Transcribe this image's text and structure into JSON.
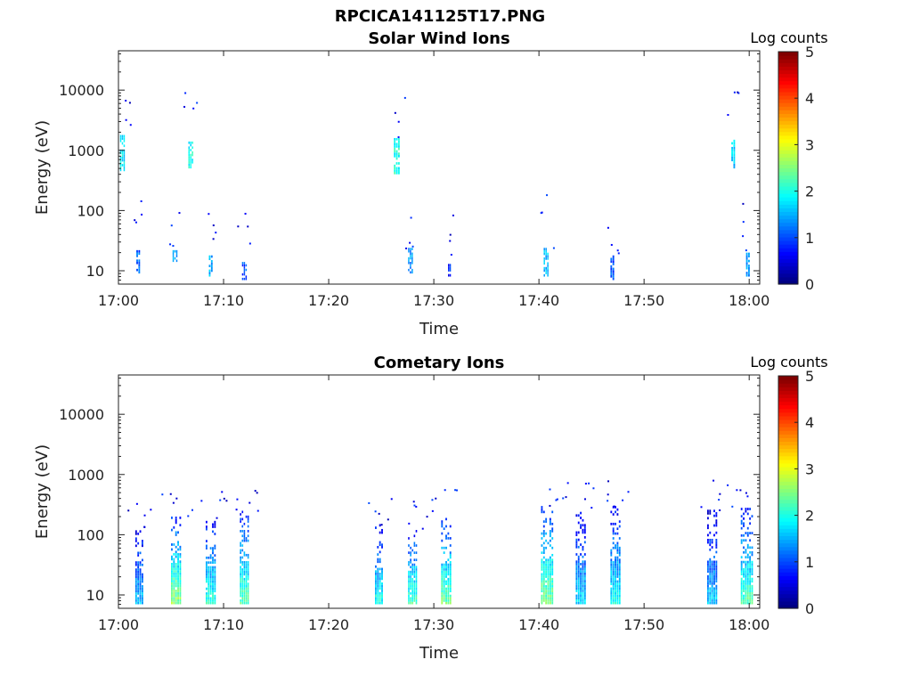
{
  "figure": {
    "title": "RPCICA141125T17.PNG"
  },
  "chart_data": [
    {
      "type": "heatmap",
      "title": "Solar Wind Ions",
      "xlabel": "Time",
      "ylabel": "Energy (eV)",
      "yscale": "log",
      "ylim": [
        6,
        45000
      ],
      "xlim_minutes": [
        0,
        61
      ],
      "x_ticks": [
        "17:00",
        "17:10",
        "17:20",
        "17:30",
        "17:40",
        "17:50",
        "18:00"
      ],
      "y_ticks": [
        "10",
        "100",
        "1000",
        "10000"
      ],
      "colorbar": {
        "label": "Log counts",
        "min": 0,
        "max": 5,
        "ticks": [
          "0",
          "1",
          "2",
          "3",
          "4",
          "5"
        ]
      },
      "bursts": [
        {
          "t": 0.4,
          "dt": 0.5,
          "e_lo": 450,
          "e_hi": 1800,
          "level": 1.8
        },
        {
          "t": 1.9,
          "dt": 0.4,
          "e_lo": 9,
          "e_hi": 22,
          "level": 1.1
        },
        {
          "t": 5.4,
          "dt": 0.5,
          "e_lo": 14,
          "e_hi": 22,
          "level": 1.5
        },
        {
          "t": 6.9,
          "dt": 0.5,
          "e_lo": 500,
          "e_hi": 1400,
          "level": 1.9
        },
        {
          "t": 8.8,
          "dt": 0.4,
          "e_lo": 8,
          "e_hi": 18,
          "level": 1.5
        },
        {
          "t": 12.0,
          "dt": 0.5,
          "e_lo": 7,
          "e_hi": 14,
          "level": 1.0
        },
        {
          "t": 26.5,
          "dt": 0.6,
          "e_lo": 400,
          "e_hi": 1600,
          "level": 2.0
        },
        {
          "t": 27.8,
          "dt": 0.5,
          "e_lo": 9,
          "e_hi": 24,
          "level": 1.3
        },
        {
          "t": 31.5,
          "dt": 0.3,
          "e_lo": 8,
          "e_hi": 13,
          "level": 0.8
        },
        {
          "t": 40.7,
          "dt": 0.5,
          "e_lo": 8,
          "e_hi": 24,
          "level": 1.5
        },
        {
          "t": 47.0,
          "dt": 0.4,
          "e_lo": 7,
          "e_hi": 18,
          "level": 1.0
        },
        {
          "t": 58.5,
          "dt": 0.4,
          "e_lo": 500,
          "e_hi": 1500,
          "level": 1.6
        },
        {
          "t": 59.9,
          "dt": 0.4,
          "e_lo": 8,
          "e_hi": 20,
          "level": 1.4
        }
      ]
    },
    {
      "type": "heatmap",
      "title": "Cometary Ions",
      "xlabel": "Time",
      "ylabel": "Energy (eV)",
      "yscale": "log",
      "ylim": [
        6,
        45000
      ],
      "xlim_minutes": [
        0,
        61
      ],
      "x_ticks": [
        "17:00",
        "17:10",
        "17:20",
        "17:30",
        "17:40",
        "17:50",
        "18:00"
      ],
      "y_ticks": [
        "10",
        "100",
        "1000",
        "10000"
      ],
      "colorbar": {
        "label": "Log counts",
        "min": 0,
        "max": 5,
        "ticks": [
          "0",
          "1",
          "2",
          "3",
          "4",
          "5"
        ]
      },
      "bursts": [
        {
          "t": 2.0,
          "dt": 0.8,
          "e_lo": 7,
          "e_hi": 130,
          "level": 1.6
        },
        {
          "t": 5.5,
          "dt": 1.0,
          "e_lo": 7,
          "e_hi": 200,
          "level": 2.6
        },
        {
          "t": 8.8,
          "dt": 1.0,
          "e_lo": 7,
          "e_hi": 170,
          "level": 2.1
        },
        {
          "t": 12.0,
          "dt": 0.9,
          "e_lo": 7,
          "e_hi": 250,
          "level": 2.3
        },
        {
          "t": 24.8,
          "dt": 0.8,
          "e_lo": 7,
          "e_hi": 150,
          "level": 2.0
        },
        {
          "t": 28.0,
          "dt": 0.9,
          "e_lo": 7,
          "e_hi": 120,
          "level": 2.2
        },
        {
          "t": 31.2,
          "dt": 1.0,
          "e_lo": 7,
          "e_hi": 190,
          "level": 2.4
        },
        {
          "t": 40.8,
          "dt": 1.2,
          "e_lo": 7,
          "e_hi": 300,
          "level": 2.5
        },
        {
          "t": 44.0,
          "dt": 1.0,
          "e_lo": 7,
          "e_hi": 240,
          "level": 1.7
        },
        {
          "t": 47.3,
          "dt": 1.0,
          "e_lo": 7,
          "e_hi": 300,
          "level": 1.9
        },
        {
          "t": 56.5,
          "dt": 1.0,
          "e_lo": 7,
          "e_hi": 260,
          "level": 1.6
        },
        {
          "t": 59.8,
          "dt": 1.2,
          "e_lo": 7,
          "e_hi": 280,
          "level": 2.3
        }
      ]
    }
  ]
}
